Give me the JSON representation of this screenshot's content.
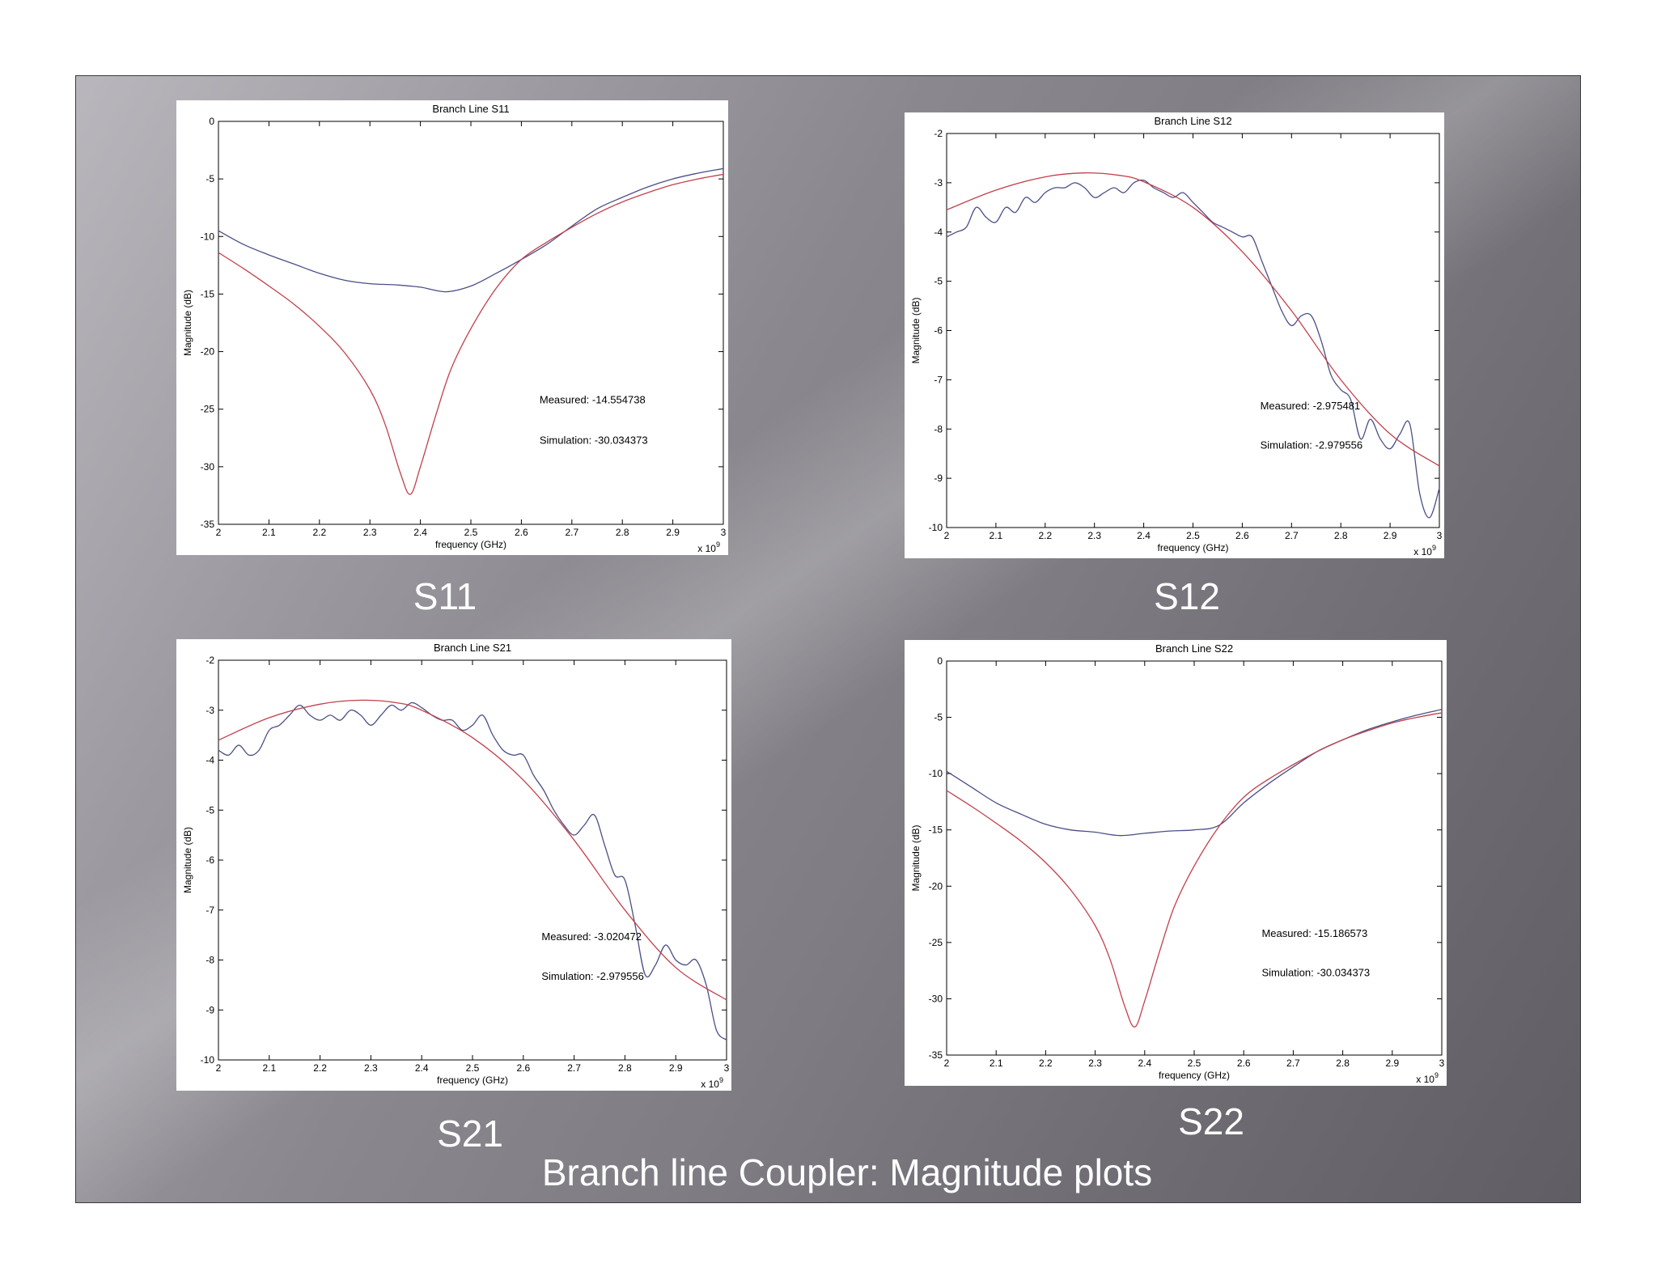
{
  "slide_title": "Branch line Coupler: Magnitude plots",
  "captions": {
    "s11": "S11",
    "s12": "S12",
    "s21": "S21",
    "s22": "S22"
  },
  "colors": {
    "measured": "#4a4f86",
    "simulation": "#c0404c",
    "axis": "#000000"
  },
  "chart_data": [
    {
      "id": "s11",
      "type": "line",
      "title": "Branch Line S11",
      "xlabel": "frequency (GHz)",
      "ylabel": "Magnitude (dB)",
      "x_multiplier": "x 10^9",
      "xlim": [
        2,
        3
      ],
      "ylim": [
        -35,
        0
      ],
      "xticks": [
        2,
        2.1,
        2.2,
        2.3,
        2.4,
        2.5,
        2.6,
        2.7,
        2.8,
        2.9,
        3
      ],
      "yticks": [
        0,
        -5,
        -10,
        -15,
        -20,
        -25,
        -30,
        -35
      ],
      "annotations": [
        "Measured: -14.554738",
        "Simulation: -30.034373"
      ],
      "series": [
        {
          "role": "measured",
          "x": [
            2,
            2.05,
            2.1,
            2.15,
            2.2,
            2.25,
            2.3,
            2.35,
            2.4,
            2.45,
            2.5,
            2.55,
            2.6,
            2.65,
            2.7,
            2.75,
            2.8,
            2.85,
            2.9,
            2.95,
            3
          ],
          "y": [
            -9.5,
            -10.7,
            -11.6,
            -12.4,
            -13.2,
            -13.8,
            -14.1,
            -14.2,
            -14.4,
            -14.8,
            -14.3,
            -13.2,
            -12.0,
            -10.7,
            -9.1,
            -7.6,
            -6.6,
            -5.7,
            -5.0,
            -4.5,
            -4.1
          ]
        },
        {
          "role": "simulation",
          "x": [
            2,
            2.05,
            2.1,
            2.15,
            2.2,
            2.25,
            2.3,
            2.33,
            2.36,
            2.38,
            2.4,
            2.43,
            2.46,
            2.5,
            2.55,
            2.6,
            2.65,
            2.7,
            2.75,
            2.8,
            2.85,
            2.9,
            2.95,
            3
          ],
          "y": [
            -11.4,
            -12.8,
            -14.3,
            -15.9,
            -17.8,
            -20.1,
            -23.3,
            -26.3,
            -30.5,
            -32.4,
            -30.0,
            -25.6,
            -21.6,
            -18.0,
            -14.5,
            -12.0,
            -10.5,
            -9.2,
            -8.0,
            -7.0,
            -6.2,
            -5.5,
            -5.0,
            -4.6
          ]
        }
      ]
    },
    {
      "id": "s12",
      "type": "line",
      "title": "Branch Line S12",
      "xlabel": "frequency (GHz)",
      "ylabel": "Magnitude (dB)",
      "x_multiplier": "x 10^9",
      "xlim": [
        2,
        3
      ],
      "ylim": [
        -10,
        -2
      ],
      "xticks": [
        2,
        2.1,
        2.2,
        2.3,
        2.4,
        2.5,
        2.6,
        2.7,
        2.8,
        2.9,
        3
      ],
      "yticks": [
        -2,
        -3,
        -4,
        -5,
        -6,
        -7,
        -8,
        -9,
        -10
      ],
      "annotations": [
        "Measured: -2.975481",
        "Simulation: -2.979556"
      ],
      "series": [
        {
          "role": "measured",
          "x": [
            2,
            2.02,
            2.04,
            2.06,
            2.08,
            2.1,
            2.12,
            2.14,
            2.16,
            2.18,
            2.2,
            2.22,
            2.24,
            2.26,
            2.28,
            2.3,
            2.32,
            2.34,
            2.36,
            2.38,
            2.4,
            2.42,
            2.44,
            2.46,
            2.48,
            2.5,
            2.52,
            2.54,
            2.56,
            2.58,
            2.6,
            2.62,
            2.64,
            2.66,
            2.68,
            2.7,
            2.72,
            2.74,
            2.76,
            2.78,
            2.8,
            2.82,
            2.84,
            2.86,
            2.88,
            2.9,
            2.92,
            2.94,
            2.96,
            2.98,
            3
          ],
          "y": [
            -4.1,
            -4.0,
            -3.9,
            -3.5,
            -3.7,
            -3.8,
            -3.5,
            -3.6,
            -3.3,
            -3.4,
            -3.2,
            -3.1,
            -3.1,
            -3.0,
            -3.1,
            -3.3,
            -3.2,
            -3.1,
            -3.2,
            -3.0,
            -2.95,
            -3.1,
            -3.2,
            -3.3,
            -3.2,
            -3.4,
            -3.6,
            -3.8,
            -3.9,
            -4.0,
            -4.1,
            -4.1,
            -4.6,
            -5.1,
            -5.6,
            -5.9,
            -5.7,
            -5.7,
            -6.2,
            -6.9,
            -7.2,
            -7.4,
            -8.2,
            -7.8,
            -8.2,
            -8.4,
            -8.1,
            -7.9,
            -9.3,
            -9.8,
            -9.2
          ]
        },
        {
          "role": "simulation",
          "x": [
            2,
            2.1,
            2.2,
            2.28,
            2.35,
            2.4,
            2.5,
            2.6,
            2.7,
            2.8,
            2.9,
            3
          ],
          "y": [
            -3.55,
            -3.15,
            -2.88,
            -2.8,
            -2.85,
            -2.98,
            -3.5,
            -4.4,
            -5.6,
            -7.0,
            -8.1,
            -8.75
          ]
        }
      ]
    },
    {
      "id": "s21",
      "type": "line",
      "title": "Branch Line S21",
      "xlabel": "frequency (GHz)",
      "ylabel": "Magnitude (dB)",
      "x_multiplier": "x 10^9",
      "xlim": [
        2,
        3
      ],
      "ylim": [
        -10,
        -2
      ],
      "xticks": [
        2,
        2.1,
        2.2,
        2.3,
        2.4,
        2.5,
        2.6,
        2.7,
        2.8,
        2.9,
        3
      ],
      "yticks": [
        -2,
        -3,
        -4,
        -5,
        -6,
        -7,
        -8,
        -9,
        -10
      ],
      "annotations": [
        "Measured: -3.020472",
        "Simulation: -2.979556"
      ],
      "series": [
        {
          "role": "measured",
          "x": [
            2,
            2.02,
            2.04,
            2.06,
            2.08,
            2.1,
            2.12,
            2.14,
            2.16,
            2.18,
            2.2,
            2.22,
            2.24,
            2.26,
            2.28,
            2.3,
            2.32,
            2.34,
            2.36,
            2.38,
            2.4,
            2.42,
            2.44,
            2.46,
            2.48,
            2.5,
            2.52,
            2.54,
            2.56,
            2.58,
            2.6,
            2.62,
            2.64,
            2.66,
            2.68,
            2.7,
            2.72,
            2.74,
            2.76,
            2.78,
            2.8,
            2.82,
            2.84,
            2.86,
            2.88,
            2.9,
            2.92,
            2.94,
            2.96,
            2.98,
            3
          ],
          "y": [
            -3.8,
            -3.9,
            -3.7,
            -3.9,
            -3.8,
            -3.4,
            -3.3,
            -3.1,
            -2.9,
            -3.1,
            -3.2,
            -3.1,
            -3.2,
            -3.0,
            -3.1,
            -3.3,
            -3.1,
            -2.9,
            -3.0,
            -2.85,
            -2.95,
            -3.1,
            -3.2,
            -3.2,
            -3.4,
            -3.3,
            -3.1,
            -3.5,
            -3.8,
            -3.9,
            -3.9,
            -4.3,
            -4.6,
            -5.0,
            -5.3,
            -5.5,
            -5.3,
            -5.1,
            -5.7,
            -6.3,
            -6.4,
            -7.3,
            -8.3,
            -8.1,
            -7.7,
            -8.0,
            -8.1,
            -8.0,
            -8.5,
            -9.4,
            -9.6
          ]
        },
        {
          "role": "simulation",
          "x": [
            2,
            2.1,
            2.2,
            2.28,
            2.35,
            2.4,
            2.5,
            2.6,
            2.7,
            2.8,
            2.9,
            3
          ],
          "y": [
            -3.6,
            -3.15,
            -2.88,
            -2.8,
            -2.85,
            -3.0,
            -3.55,
            -4.4,
            -5.6,
            -7.0,
            -8.15,
            -8.8
          ]
        }
      ]
    },
    {
      "id": "s22",
      "type": "line",
      "title": "Branch Line S22",
      "xlabel": "frequency (GHz)",
      "ylabel": "Magnitude (dB)",
      "x_multiplier": "x 10^9",
      "xlim": [
        2,
        3
      ],
      "ylim": [
        -35,
        0
      ],
      "xticks": [
        2,
        2.1,
        2.2,
        2.3,
        2.4,
        2.5,
        2.6,
        2.7,
        2.8,
        2.9,
        3
      ],
      "yticks": [
        0,
        -5,
        -10,
        -15,
        -20,
        -25,
        -30,
        -35
      ],
      "annotations": [
        "Measured: -15.186573",
        "Simulation: -30.034373"
      ],
      "series": [
        {
          "role": "measured",
          "x": [
            2,
            2.05,
            2.1,
            2.15,
            2.2,
            2.25,
            2.3,
            2.35,
            2.4,
            2.45,
            2.5,
            2.55,
            2.6,
            2.65,
            2.7,
            2.75,
            2.8,
            2.85,
            2.9,
            2.95,
            3
          ],
          "y": [
            -9.8,
            -11.2,
            -12.6,
            -13.6,
            -14.5,
            -15.0,
            -15.2,
            -15.5,
            -15.3,
            -15.1,
            -15.0,
            -14.6,
            -12.6,
            -10.9,
            -9.4,
            -8.0,
            -7.0,
            -6.1,
            -5.4,
            -4.8,
            -4.3
          ]
        },
        {
          "role": "simulation",
          "x": [
            2,
            2.05,
            2.1,
            2.15,
            2.2,
            2.25,
            2.3,
            2.33,
            2.36,
            2.38,
            2.4,
            2.43,
            2.46,
            2.5,
            2.55,
            2.6,
            2.65,
            2.7,
            2.75,
            2.8,
            2.85,
            2.9,
            2.95,
            3
          ],
          "y": [
            -11.5,
            -12.9,
            -14.4,
            -16.0,
            -17.9,
            -20.3,
            -23.5,
            -26.5,
            -30.7,
            -32.5,
            -30.2,
            -25.8,
            -21.8,
            -18.2,
            -14.7,
            -12.1,
            -10.5,
            -9.2,
            -8.0,
            -7.0,
            -6.2,
            -5.5,
            -5.0,
            -4.6
          ]
        }
      ]
    }
  ]
}
